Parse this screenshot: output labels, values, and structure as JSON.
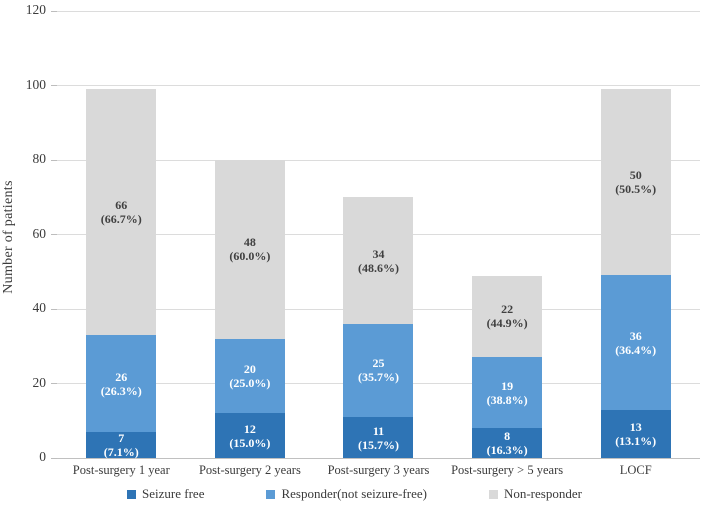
{
  "chart_data": {
    "type": "bar",
    "stacked": true,
    "title": "",
    "xlabel": "",
    "ylabel": "Number of patients",
    "ylim": [
      0,
      120
    ],
    "yticks": [
      0,
      20,
      40,
      60,
      80,
      100,
      120
    ],
    "grid": true,
    "legend_position": "bottom",
    "categories": [
      "Post-surgery 1 year",
      "Post-surgery 2 years",
      "Post-surgery 3 years",
      "Post-surgery > 5 years",
      "LOCF"
    ],
    "series": [
      {
        "name": "Seizure free",
        "color": "#2E74B5",
        "label_color": "#FFFFFF",
        "values": [
          7,
          12,
          11,
          8,
          13
        ],
        "pct_labels": [
          "(7.1%)",
          "(15.0%)",
          "(15.7%)",
          "(16.3%)",
          "(13.1%)"
        ]
      },
      {
        "name": "Responder(not seizure-free)",
        "color": "#5B9BD5",
        "label_color": "#FFFFFF",
        "values": [
          26,
          20,
          25,
          19,
          36
        ],
        "pct_labels": [
          "(26.3%)",
          "(25.0%)",
          "(35.7%)",
          "(38.8%)",
          "(36.4%)"
        ]
      },
      {
        "name": "Non-responder",
        "color": "#D9D9D9",
        "label_color": "#404040",
        "values": [
          66,
          48,
          34,
          22,
          50
        ],
        "pct_labels": [
          "(66.7%)",
          "(60.0%)",
          "(48.6%)",
          "(44.9%)",
          "(50.5%)"
        ]
      }
    ],
    "totals": [
      99,
      80,
      70,
      49,
      99
    ],
    "colors": {
      "gridline": "#DCDCDC",
      "axis_line": "#C0C0C0",
      "text": "#3B3B3B",
      "background": "#FFFFFF"
    }
  }
}
